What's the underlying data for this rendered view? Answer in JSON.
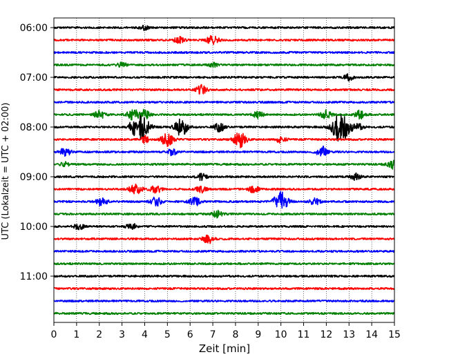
{
  "chart_data": {
    "type": "line",
    "xlabel": "Zeit  [min]",
    "ylabel": "UTC (Lokalzeit = UTC + 02:00)",
    "xlim": [
      0,
      15
    ],
    "x_ticks": [
      "0",
      "1",
      "2",
      "3",
      "4",
      "5",
      "6",
      "7",
      "8",
      "9",
      "10",
      "11",
      "12",
      "13",
      "14",
      "15"
    ],
    "y_tick_labels": [
      "06:00",
      "07:00",
      "08:00",
      "09:00",
      "10:00",
      "11:00"
    ],
    "grid": "vertical dotted lines at each minute",
    "trace_colors": [
      "#000000",
      "#ff0000",
      "#0000ff",
      "#008000"
    ],
    "traces": [
      {
        "start": "06:00",
        "color": "#000000",
        "events": [
          {
            "t": 4.0,
            "amp": 0.2
          }
        ]
      },
      {
        "start": "06:15",
        "color": "#ff0000",
        "events": [
          {
            "t": 5.5,
            "amp": 0.3
          },
          {
            "t": 7.0,
            "amp": 0.45
          }
        ]
      },
      {
        "start": "06:30",
        "color": "#0000ff",
        "events": []
      },
      {
        "start": "06:45",
        "color": "#008000",
        "events": [
          {
            "t": 3.0,
            "amp": 0.2
          },
          {
            "t": 7.0,
            "amp": 0.2
          }
        ]
      },
      {
        "start": "07:00",
        "color": "#000000",
        "events": [
          {
            "t": 13.0,
            "amp": 0.3
          }
        ]
      },
      {
        "start": "07:15",
        "color": "#ff0000",
        "events": [
          {
            "t": 6.5,
            "amp": 0.4
          }
        ]
      },
      {
        "start": "07:30",
        "color": "#0000ff",
        "events": []
      },
      {
        "start": "07:45",
        "color": "#008000",
        "events": [
          {
            "t": 2.0,
            "amp": 0.4
          },
          {
            "t": 3.5,
            "amp": 0.55
          },
          {
            "t": 4.0,
            "amp": 0.4
          },
          {
            "t": 9.0,
            "amp": 0.3
          },
          {
            "t": 12.0,
            "amp": 0.4
          },
          {
            "t": 13.5,
            "amp": 0.4
          }
        ]
      },
      {
        "start": "08:00",
        "color": "#000000",
        "events": [
          {
            "t": 3.5,
            "amp": 0.5
          },
          {
            "t": 3.9,
            "amp": 1.0
          },
          {
            "t": 5.6,
            "amp": 0.8
          },
          {
            "t": 7.3,
            "amp": 0.4
          },
          {
            "t": 12.65,
            "amp": 1.45
          },
          {
            "t": 13.4,
            "amp": 0.3
          }
        ]
      },
      {
        "start": "08:15",
        "color": "#ff0000",
        "events": [
          {
            "t": 4.0,
            "amp": 0.3
          },
          {
            "t": 5.0,
            "amp": 0.6
          },
          {
            "t": 8.2,
            "amp": 0.7
          },
          {
            "t": 10.0,
            "amp": 0.3
          }
        ]
      },
      {
        "start": "08:30",
        "color": "#0000ff",
        "events": [
          {
            "t": 0.5,
            "amp": 0.4
          },
          {
            "t": 5.2,
            "amp": 0.3
          },
          {
            "t": 11.8,
            "amp": 0.5
          }
        ]
      },
      {
        "start": "08:45",
        "color": "#008000",
        "events": [
          {
            "t": 0.5,
            "amp": 0.2
          },
          {
            "t": 14.9,
            "amp": 0.4
          }
        ]
      },
      {
        "start": "09:00",
        "color": "#000000",
        "events": [
          {
            "t": 6.5,
            "amp": 0.3
          },
          {
            "t": 13.3,
            "amp": 0.3
          }
        ]
      },
      {
        "start": "09:15",
        "color": "#ff0000",
        "events": [
          {
            "t": 3.6,
            "amp": 0.55
          },
          {
            "t": 4.5,
            "amp": 0.4
          },
          {
            "t": 6.5,
            "amp": 0.3
          },
          {
            "t": 8.8,
            "amp": 0.3
          }
        ]
      },
      {
        "start": "09:30",
        "color": "#0000ff",
        "events": [
          {
            "t": 2.1,
            "amp": 0.4
          },
          {
            "t": 4.5,
            "amp": 0.4
          },
          {
            "t": 6.2,
            "amp": 0.4
          },
          {
            "t": 10.0,
            "amp": 0.9
          },
          {
            "t": 11.5,
            "amp": 0.3
          }
        ]
      },
      {
        "start": "09:45",
        "color": "#008000",
        "events": [
          {
            "t": 7.2,
            "amp": 0.3
          }
        ]
      },
      {
        "start": "10:00",
        "color": "#000000",
        "events": [
          {
            "t": 1.1,
            "amp": 0.3
          },
          {
            "t": 3.4,
            "amp": 0.3
          }
        ]
      },
      {
        "start": "10:15",
        "color": "#ff0000",
        "events": [
          {
            "t": 6.8,
            "amp": 0.4
          }
        ]
      },
      {
        "start": "10:30",
        "color": "#0000ff",
        "events": []
      },
      {
        "start": "10:45",
        "color": "#008000",
        "events": []
      },
      {
        "start": "11:00",
        "color": "#000000",
        "events": []
      },
      {
        "start": "11:15",
        "color": "#ff0000",
        "events": []
      },
      {
        "start": "11:30",
        "color": "#0000ff",
        "events": []
      },
      {
        "start": "11:45",
        "color": "#008000",
        "events": []
      }
    ]
  }
}
